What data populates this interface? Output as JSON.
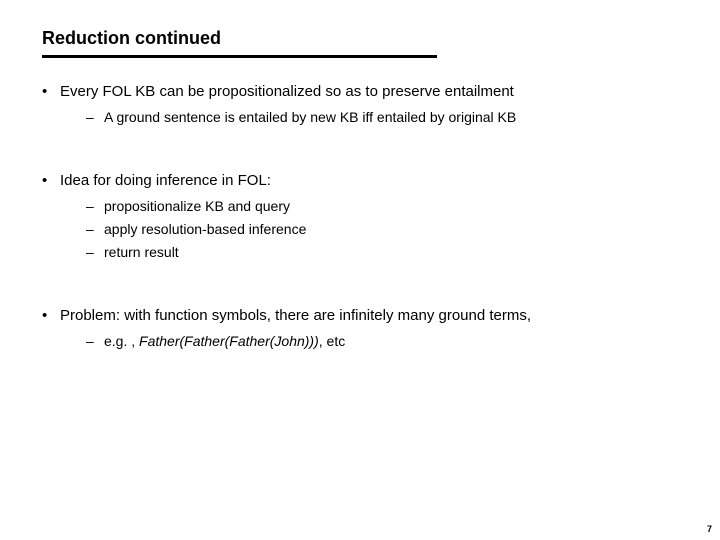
{
  "slide": {
    "title": "Reduction continued",
    "number": "7",
    "blocks": [
      {
        "text": "Every FOL KB can be propositionalized so as to preserve entailment",
        "subs": [
          {
            "text": "A ground sentence is entailed by new KB iff entailed by original KB"
          }
        ]
      },
      {
        "text": "Idea for doing inference in FOL:",
        "subs": [
          {
            "text": "propositionalize KB and query"
          },
          {
            "text": "apply resolution-based inference"
          },
          {
            "text": " return result"
          }
        ]
      },
      {
        "text": "Problem: with function symbols, there are infinitely many ground terms,",
        "subs": [
          {
            "prefix": "e.g. , ",
            "ital": "Father(Father(Father(John)))",
            "suffix": ", etc"
          }
        ]
      }
    ]
  }
}
